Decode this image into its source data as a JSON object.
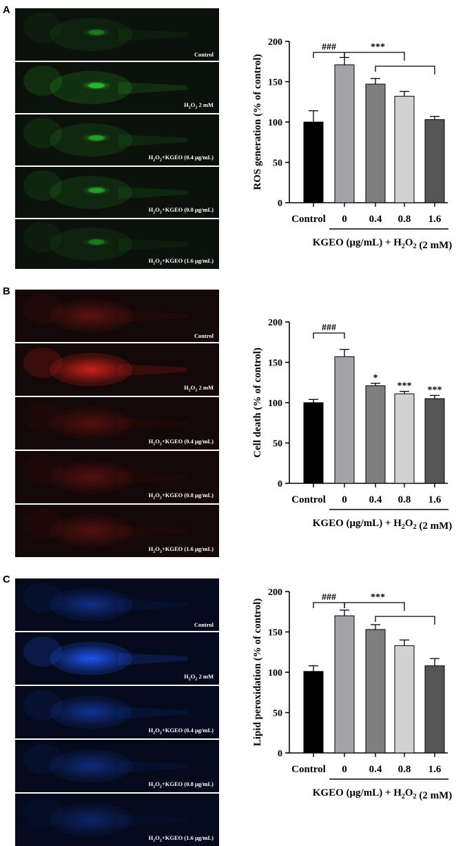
{
  "panels": [
    {
      "letter": "A",
      "image_labels": [
        "Control",
        "H2O2 2 mM",
        "H2O2+KGEO (0.4 μg/mL)",
        "H2O2+KGEO (0.8 μg/mL)",
        "H2O2+KGEO (1.6 μg/mL)"
      ],
      "stain_color": "#2fd12f",
      "background_color": "#0b120b"
    },
    {
      "letter": "B",
      "image_labels": [
        "Control",
        "H2O2 2 mM",
        "H2O2+KGEO (0.4 μg/mL)",
        "H2O2+KGEO (0.8 μg/mL)",
        "H2O2+KGEO (1.6 μg/mL)"
      ],
      "stain_color": "#d9231c",
      "background_color": "#140808"
    },
    {
      "letter": "C",
      "image_labels": [
        "Control",
        "H2O2 2 mM",
        "H2O2+KGEO (0.4 μg/mL)",
        "H2O2+KGEO (0.8 μg/mL)",
        "H2O2+KGEO (1.6 μg/mL)"
      ],
      "stain_color": "#1f5bff",
      "background_color": "#050a1c"
    }
  ],
  "chart_data": [
    {
      "type": "bar",
      "ylabel": "ROS generation (% of control)",
      "xlabel": "KGEO (μg/mL) + H2O2 (2 mM)",
      "categories": [
        "Control",
        "0",
        "0.4",
        "0.8",
        "1.6"
      ],
      "values": [
        100,
        171,
        147,
        132,
        103
      ],
      "errors": [
        14,
        9,
        7,
        6,
        4
      ],
      "ylim": [
        0,
        200
      ],
      "yticks": [
        0,
        50,
        100,
        150,
        200
      ],
      "bar_colors": [
        "#000000",
        "#a3a3a8",
        "#7f7f7f",
        "#d2d2d2",
        "#555555"
      ],
      "significance": {
        "hash": "###",
        "stars": "***",
        "per_bar": [
          "",
          "",
          "",
          "",
          ""
        ]
      }
    },
    {
      "type": "bar",
      "ylabel": "Cell death (% of control)",
      "xlabel": "KGEO (μg/mL) + H2O2 (2 mM)",
      "categories": [
        "Control",
        "0",
        "0.4",
        "0.8",
        "1.6"
      ],
      "values": [
        100,
        157,
        121,
        111,
        105
      ],
      "errors": [
        4,
        9,
        3,
        3,
        4
      ],
      "ylim": [
        0,
        200
      ],
      "yticks": [
        0,
        50,
        100,
        150,
        200
      ],
      "bar_colors": [
        "#000000",
        "#a3a3a8",
        "#7f7f7f",
        "#d2d2d2",
        "#555555"
      ],
      "significance": {
        "hash": "###",
        "stars": "",
        "per_bar": [
          "",
          "",
          "*",
          "***",
          "***"
        ]
      }
    },
    {
      "type": "bar",
      "ylabel": "Lipid peroxidation (% of control)",
      "xlabel": "KGEO (μg/mL) + H2O2 (2 mM)",
      "categories": [
        "Control",
        "0",
        "0.4",
        "0.8",
        "1.6"
      ],
      "values": [
        101,
        170,
        153,
        133,
        108
      ],
      "errors": [
        7,
        7,
        6,
        7,
        9
      ],
      "ylim": [
        0,
        200
      ],
      "yticks": [
        0,
        50,
        100,
        150,
        200
      ],
      "bar_colors": [
        "#000000",
        "#a3a3a8",
        "#7f7f7f",
        "#d2d2d2",
        "#555555"
      ],
      "significance": {
        "hash": "###",
        "stars": "***",
        "per_bar": [
          "",
          "",
          "",
          "",
          ""
        ]
      }
    }
  ]
}
